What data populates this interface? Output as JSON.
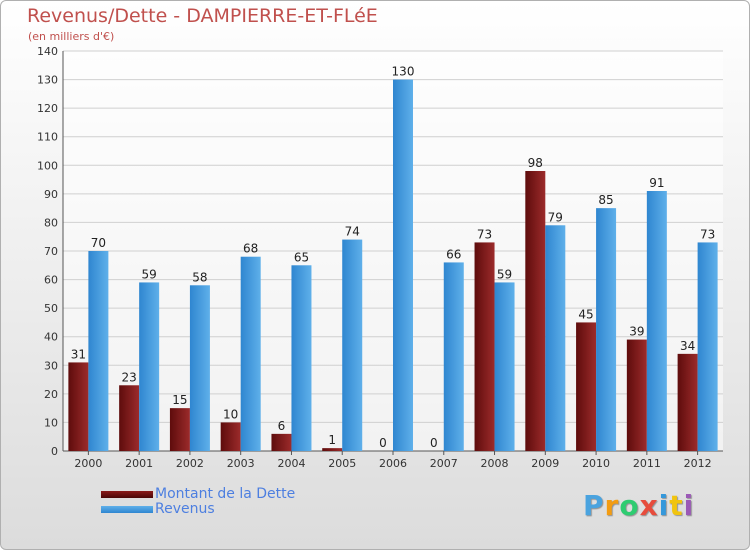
{
  "colors": {
    "debt": "#8b1a1a",
    "revenue": "#3a94d8",
    "title": "#c0504d",
    "legend_text": "#4d7fe0"
  },
  "logo": {
    "letters": [
      {
        "char": "P",
        "color": "#4aa3df"
      },
      {
        "char": "r",
        "color": "#f39c12"
      },
      {
        "char": "o",
        "color": "#2ecc71"
      },
      {
        "char": "x",
        "color": "#e74c3c"
      },
      {
        "char": "i",
        "color": "#3498db"
      },
      {
        "char": "t",
        "color": "#f1c40f"
      },
      {
        "char": "i",
        "color": "#9b59b6"
      }
    ]
  },
  "chart_data": {
    "type": "bar",
    "title": "Revenus/Dette - DAMPIERRE-ET-FLéE",
    "subtitle": "(en milliers d'€)",
    "xlabel": "",
    "ylabel": "",
    "ylim": [
      0,
      140
    ],
    "yticks": [
      0,
      10,
      20,
      30,
      40,
      50,
      60,
      70,
      80,
      90,
      100,
      110,
      120,
      130,
      140
    ],
    "grid": true,
    "legend_position": "bottom-left",
    "categories": [
      "2000",
      "2001",
      "2002",
      "2003",
      "2004",
      "2005",
      "2006",
      "2007",
      "2008",
      "2009",
      "2010",
      "2011",
      "2012"
    ],
    "series": [
      {
        "name": "Montant de la Dette",
        "values": [
          31,
          23,
          15,
          10,
          6,
          1,
          0,
          0,
          73,
          98,
          45,
          39,
          34
        ]
      },
      {
        "name": "Revenus",
        "values": [
          70,
          59,
          58,
          68,
          65,
          74,
          130,
          66,
          59,
          79,
          85,
          91,
          73
        ]
      }
    ]
  }
}
